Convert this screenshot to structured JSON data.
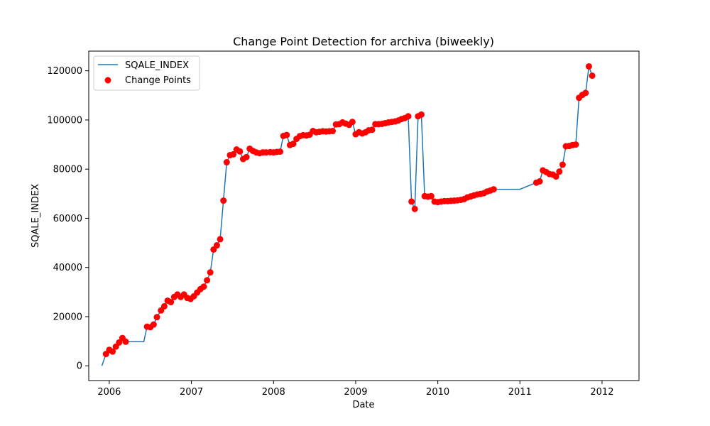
{
  "chart_data": {
    "type": "line",
    "title": "Change Point Detection for archiva (biweekly)",
    "xlabel": "Date",
    "ylabel": "SQALE_INDEX",
    "xlim": [
      2005.75,
      2012.45
    ],
    "ylim": [
      -6000,
      128000
    ],
    "x_ticks": [
      2006,
      2007,
      2008,
      2009,
      2010,
      2011,
      2012
    ],
    "x_tick_labels": [
      "2006",
      "2007",
      "2008",
      "2009",
      "2010",
      "2011",
      "2012"
    ],
    "y_ticks": [
      0,
      20000,
      40000,
      60000,
      80000,
      100000,
      120000
    ],
    "y_tick_labels": [
      "0",
      "20000",
      "40000",
      "60000",
      "80000",
      "100000",
      "120000"
    ],
    "grid": false,
    "legend_position": "top-left",
    "series": [
      {
        "name": "SQALE_INDEX",
        "kind": "line",
        "color": "#1f77b4",
        "points": [
          [
            2005.91,
            0
          ],
          [
            2005.96,
            4800
          ],
          [
            2006.0,
            6500
          ],
          [
            2006.04,
            5800
          ],
          [
            2006.08,
            7800
          ],
          [
            2006.12,
            9500
          ],
          [
            2006.16,
            11300
          ],
          [
            2006.2,
            9800
          ],
          [
            2006.3,
            9800
          ],
          [
            2006.42,
            9800
          ],
          [
            2006.46,
            15900
          ],
          [
            2006.5,
            15700
          ],
          [
            2006.54,
            16800
          ],
          [
            2006.58,
            19800
          ],
          [
            2006.63,
            22500
          ],
          [
            2006.67,
            24200
          ],
          [
            2006.71,
            26500
          ],
          [
            2006.75,
            25900
          ],
          [
            2006.79,
            28000
          ],
          [
            2006.83,
            29000
          ],
          [
            2006.87,
            28000
          ],
          [
            2006.91,
            29000
          ],
          [
            2006.95,
            27600
          ],
          [
            2006.99,
            27200
          ],
          [
            2007.03,
            28300
          ],
          [
            2007.07,
            29800
          ],
          [
            2007.11,
            31200
          ],
          [
            2007.15,
            32200
          ],
          [
            2007.19,
            34800
          ],
          [
            2007.23,
            38000
          ],
          [
            2007.27,
            47300
          ],
          [
            2007.31,
            49000
          ],
          [
            2007.35,
            51500
          ],
          [
            2007.39,
            67200
          ],
          [
            2007.43,
            82800
          ],
          [
            2007.47,
            85700
          ],
          [
            2007.51,
            86000
          ],
          [
            2007.55,
            88000
          ],
          [
            2007.59,
            87200
          ],
          [
            2007.63,
            84100
          ],
          [
            2007.67,
            84900
          ],
          [
            2007.71,
            88300
          ],
          [
            2007.75,
            87400
          ],
          [
            2007.79,
            86800
          ],
          [
            2007.83,
            86500
          ],
          [
            2007.87,
            86800
          ],
          [
            2007.91,
            86800
          ],
          [
            2007.96,
            86900
          ],
          [
            2008.0,
            86800
          ],
          [
            2008.04,
            87000
          ],
          [
            2008.08,
            87100
          ],
          [
            2008.12,
            93500
          ],
          [
            2008.16,
            93900
          ],
          [
            2008.2,
            89800
          ],
          [
            2008.24,
            90300
          ],
          [
            2008.28,
            92300
          ],
          [
            2008.32,
            93400
          ],
          [
            2008.36,
            93800
          ],
          [
            2008.4,
            93700
          ],
          [
            2008.44,
            94000
          ],
          [
            2008.48,
            95500
          ],
          [
            2008.52,
            95000
          ],
          [
            2008.56,
            95200
          ],
          [
            2008.6,
            95400
          ],
          [
            2008.64,
            95300
          ],
          [
            2008.68,
            95400
          ],
          [
            2008.72,
            95500
          ],
          [
            2008.76,
            98200
          ],
          [
            2008.8,
            98300
          ],
          [
            2008.84,
            99000
          ],
          [
            2008.88,
            98500
          ],
          [
            2008.92,
            98000
          ],
          [
            2008.96,
            99200
          ],
          [
            2009.0,
            94200
          ],
          [
            2009.04,
            95000
          ],
          [
            2009.08,
            94500
          ],
          [
            2009.12,
            95000
          ],
          [
            2009.16,
            95800
          ],
          [
            2009.2,
            96000
          ],
          [
            2009.24,
            98300
          ],
          [
            2009.28,
            98300
          ],
          [
            2009.32,
            98400
          ],
          [
            2009.36,
            98700
          ],
          [
            2009.4,
            99000
          ],
          [
            2009.44,
            99200
          ],
          [
            2009.48,
            99400
          ],
          [
            2009.52,
            99800
          ],
          [
            2009.56,
            100400
          ],
          [
            2009.6,
            100800
          ],
          [
            2009.64,
            101500
          ],
          [
            2009.68,
            66800
          ],
          [
            2009.72,
            63800
          ],
          [
            2009.76,
            101500
          ],
          [
            2009.8,
            102200
          ],
          [
            2009.84,
            69000
          ],
          [
            2009.88,
            68800
          ],
          [
            2009.92,
            69000
          ],
          [
            2009.96,
            66800
          ],
          [
            2010.0,
            66600
          ],
          [
            2010.04,
            66800
          ],
          [
            2010.08,
            67000
          ],
          [
            2010.12,
            67000
          ],
          [
            2010.16,
            67100
          ],
          [
            2010.2,
            67200
          ],
          [
            2010.24,
            67300
          ],
          [
            2010.28,
            67500
          ],
          [
            2010.32,
            67800
          ],
          [
            2010.36,
            68500
          ],
          [
            2010.4,
            68900
          ],
          [
            2010.44,
            69300
          ],
          [
            2010.48,
            69700
          ],
          [
            2010.52,
            69900
          ],
          [
            2010.56,
            70200
          ],
          [
            2010.6,
            70900
          ],
          [
            2010.64,
            71300
          ],
          [
            2010.68,
            71800
          ],
          [
            2011.0,
            71800
          ],
          [
            2011.2,
            74500
          ],
          [
            2011.24,
            75000
          ],
          [
            2011.28,
            79500
          ],
          [
            2011.32,
            78800
          ],
          [
            2011.36,
            78000
          ],
          [
            2011.4,
            77800
          ],
          [
            2011.44,
            77000
          ],
          [
            2011.48,
            79000
          ],
          [
            2011.52,
            81800
          ],
          [
            2011.56,
            89300
          ],
          [
            2011.6,
            89400
          ],
          [
            2011.64,
            89800
          ],
          [
            2011.68,
            90000
          ],
          [
            2011.72,
            109000
          ],
          [
            2011.76,
            110200
          ],
          [
            2011.8,
            111000
          ],
          [
            2011.84,
            121800
          ],
          [
            2011.88,
            118000
          ]
        ]
      },
      {
        "name": "Change Points",
        "kind": "scatter",
        "color": "#ff0000",
        "points": [
          [
            2005.96,
            4800
          ],
          [
            2006.0,
            6500
          ],
          [
            2006.04,
            5800
          ],
          [
            2006.08,
            7800
          ],
          [
            2006.12,
            9500
          ],
          [
            2006.16,
            11300
          ],
          [
            2006.2,
            9800
          ],
          [
            2006.46,
            15900
          ],
          [
            2006.5,
            15700
          ],
          [
            2006.54,
            16800
          ],
          [
            2006.58,
            19800
          ],
          [
            2006.63,
            22500
          ],
          [
            2006.67,
            24200
          ],
          [
            2006.71,
            26500
          ],
          [
            2006.75,
            25900
          ],
          [
            2006.79,
            28000
          ],
          [
            2006.83,
            29000
          ],
          [
            2006.87,
            28000
          ],
          [
            2006.91,
            29000
          ],
          [
            2006.95,
            27600
          ],
          [
            2006.99,
            27200
          ],
          [
            2007.03,
            28300
          ],
          [
            2007.07,
            29800
          ],
          [
            2007.11,
            31200
          ],
          [
            2007.15,
            32200
          ],
          [
            2007.19,
            34800
          ],
          [
            2007.23,
            38000
          ],
          [
            2007.27,
            47300
          ],
          [
            2007.31,
            49000
          ],
          [
            2007.35,
            51500
          ],
          [
            2007.39,
            67200
          ],
          [
            2007.43,
            82800
          ],
          [
            2007.47,
            85700
          ],
          [
            2007.51,
            86000
          ],
          [
            2007.55,
            88000
          ],
          [
            2007.59,
            87200
          ],
          [
            2007.63,
            84100
          ],
          [
            2007.67,
            84900
          ],
          [
            2007.71,
            88300
          ],
          [
            2007.75,
            87400
          ],
          [
            2007.79,
            86800
          ],
          [
            2007.83,
            86500
          ],
          [
            2007.87,
            86800
          ],
          [
            2007.91,
            86800
          ],
          [
            2007.96,
            86900
          ],
          [
            2008.0,
            86800
          ],
          [
            2008.04,
            87000
          ],
          [
            2008.08,
            87100
          ],
          [
            2008.12,
            93500
          ],
          [
            2008.16,
            93900
          ],
          [
            2008.2,
            89800
          ],
          [
            2008.24,
            90300
          ],
          [
            2008.28,
            92300
          ],
          [
            2008.32,
            93400
          ],
          [
            2008.36,
            93800
          ],
          [
            2008.4,
            93700
          ],
          [
            2008.44,
            94000
          ],
          [
            2008.48,
            95500
          ],
          [
            2008.52,
            95000
          ],
          [
            2008.56,
            95200
          ],
          [
            2008.6,
            95400
          ],
          [
            2008.64,
            95300
          ],
          [
            2008.68,
            95400
          ],
          [
            2008.72,
            95500
          ],
          [
            2008.76,
            98200
          ],
          [
            2008.8,
            98300
          ],
          [
            2008.84,
            99000
          ],
          [
            2008.88,
            98500
          ],
          [
            2008.92,
            98000
          ],
          [
            2008.96,
            99200
          ],
          [
            2009.0,
            94200
          ],
          [
            2009.04,
            95000
          ],
          [
            2009.08,
            94500
          ],
          [
            2009.12,
            95000
          ],
          [
            2009.16,
            95800
          ],
          [
            2009.2,
            96000
          ],
          [
            2009.24,
            98300
          ],
          [
            2009.28,
            98300
          ],
          [
            2009.32,
            98400
          ],
          [
            2009.36,
            98700
          ],
          [
            2009.4,
            99000
          ],
          [
            2009.44,
            99200
          ],
          [
            2009.48,
            99400
          ],
          [
            2009.52,
            99800
          ],
          [
            2009.56,
            100400
          ],
          [
            2009.6,
            100800
          ],
          [
            2009.64,
            101500
          ],
          [
            2009.68,
            66800
          ],
          [
            2009.72,
            63800
          ],
          [
            2009.76,
            101500
          ],
          [
            2009.8,
            102200
          ],
          [
            2009.84,
            69000
          ],
          [
            2009.88,
            68800
          ],
          [
            2009.92,
            69000
          ],
          [
            2009.96,
            66800
          ],
          [
            2010.0,
            66600
          ],
          [
            2010.04,
            66800
          ],
          [
            2010.08,
            67000
          ],
          [
            2010.12,
            67000
          ],
          [
            2010.16,
            67100
          ],
          [
            2010.2,
            67200
          ],
          [
            2010.24,
            67300
          ],
          [
            2010.28,
            67500
          ],
          [
            2010.32,
            67800
          ],
          [
            2010.36,
            68500
          ],
          [
            2010.4,
            68900
          ],
          [
            2010.44,
            69300
          ],
          [
            2010.48,
            69700
          ],
          [
            2010.52,
            69900
          ],
          [
            2010.56,
            70200
          ],
          [
            2010.6,
            70900
          ],
          [
            2010.64,
            71300
          ],
          [
            2010.68,
            71800
          ],
          [
            2011.2,
            74500
          ],
          [
            2011.24,
            75000
          ],
          [
            2011.28,
            79500
          ],
          [
            2011.32,
            78800
          ],
          [
            2011.36,
            78000
          ],
          [
            2011.4,
            77800
          ],
          [
            2011.44,
            77000
          ],
          [
            2011.48,
            79000
          ],
          [
            2011.52,
            81800
          ],
          [
            2011.56,
            89300
          ],
          [
            2011.6,
            89400
          ],
          [
            2011.64,
            89800
          ],
          [
            2011.68,
            90000
          ],
          [
            2011.72,
            109000
          ],
          [
            2011.76,
            110200
          ],
          [
            2011.8,
            111000
          ],
          [
            2011.84,
            121800
          ],
          [
            2011.88,
            118000
          ]
        ]
      }
    ]
  }
}
